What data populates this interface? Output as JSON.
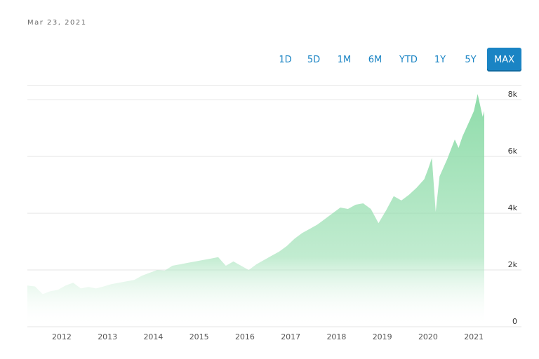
{
  "header": {
    "date": "Mar 23, 2021"
  },
  "ranges": [
    {
      "label": "1D",
      "active": false
    },
    {
      "label": "5D",
      "active": false
    },
    {
      "label": "1M",
      "active": false
    },
    {
      "label": "6M",
      "active": false
    },
    {
      "label": "YTD",
      "active": false
    },
    {
      "label": "1Y",
      "active": false
    },
    {
      "label": "5Y",
      "active": false
    },
    {
      "label": "MAX",
      "active": true
    }
  ],
  "colors": {
    "accent": "#1a84c4",
    "area_top": "#8fdcaa",
    "area_bottom": "#ffffff"
  },
  "chart_data": {
    "type": "area",
    "x_ticks": [
      "2012",
      "2013",
      "2014",
      "2015",
      "2016",
      "2017",
      "2018",
      "2019",
      "2020",
      "2021"
    ],
    "y_ticks": [
      "0",
      "2k",
      "4k",
      "6k",
      "8k"
    ],
    "ylim": [
      0,
      8500
    ],
    "xlim": [
      "2011-04",
      "2021-03-23"
    ],
    "grid": true,
    "y_axis_position": "right",
    "series": [
      {
        "x": [
          "2011-04",
          "2011-06",
          "2011-08",
          "2011-10",
          "2011-12",
          "2012-02",
          "2012-04",
          "2012-06",
          "2012-08",
          "2012-10",
          "2012-12",
          "2013-02",
          "2013-04",
          "2013-06",
          "2013-08",
          "2013-10",
          "2013-12",
          "2014-02",
          "2014-04",
          "2014-06",
          "2014-08",
          "2014-10",
          "2014-12",
          "2015-02",
          "2015-04",
          "2015-06",
          "2015-08",
          "2015-10",
          "2015-12",
          "2016-02",
          "2016-04",
          "2016-06",
          "2016-08",
          "2016-10",
          "2016-12",
          "2017-02",
          "2017-04",
          "2017-06",
          "2017-08",
          "2017-10",
          "2017-12",
          "2018-02",
          "2018-04",
          "2018-06",
          "2018-08",
          "2018-10",
          "2018-12",
          "2019-02",
          "2019-04",
          "2019-06",
          "2019-08",
          "2019-10",
          "2019-12",
          "2020-01",
          "2020-02",
          "2020-03",
          "2020-04",
          "2020-06",
          "2020-08",
          "2020-09",
          "2020-10",
          "2020-12",
          "2021-01",
          "2021-02",
          "2021-03-10",
          "2021-03-23"
        ],
        "values": [
          1450,
          1420,
          1150,
          1250,
          1300,
          1450,
          1550,
          1350,
          1400,
          1350,
          1420,
          1500,
          1550,
          1600,
          1650,
          1800,
          1900,
          2000,
          1980,
          2150,
          2200,
          2250,
          2300,
          2350,
          2400,
          2450,
          2150,
          2300,
          2150,
          2000,
          2200,
          2350,
          2500,
          2650,
          2850,
          3100,
          3300,
          3450,
          3600,
          3800,
          4000,
          4200,
          4150,
          4300,
          4350,
          4150,
          3650,
          4100,
          4600,
          4450,
          4650,
          4900,
          5200,
          5550,
          5950,
          4050,
          5300,
          5900,
          6600,
          6300,
          6700,
          7300,
          7600,
          8200,
          7400,
          7600
        ]
      }
    ]
  }
}
